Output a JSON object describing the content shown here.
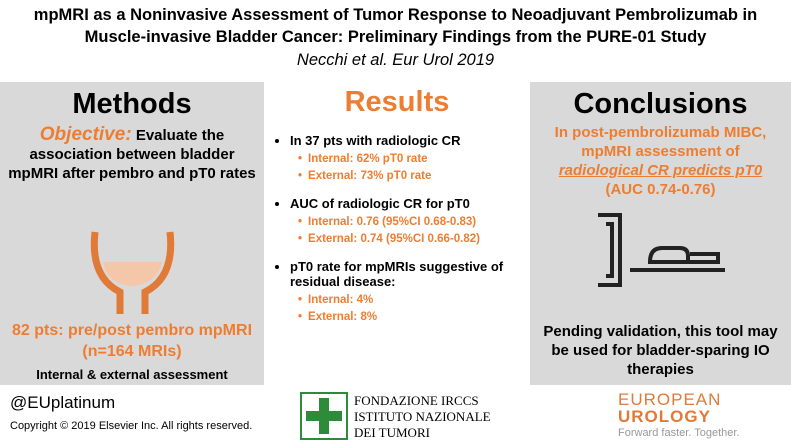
{
  "header": {
    "title_lines": [
      "mpMRI as a Noninvasive Assessment of Tumor Response to Neoadjuvant Pembrolizumab in",
      "Muscle-invasive Bladder Cancer: Preliminary Findings from the PURE-01 Study"
    ],
    "citation": "Necchi et al. Eur Urol 2019"
  },
  "methods": {
    "heading": "Methods",
    "objective_label": "Objective:",
    "objective_text": "Evaluate the association between bladder mpMRI after pembro and pT0 rates",
    "patients": "82 pts: pre/post pembro mpMRI (n=164 MRIs)",
    "assessment": "Internal & external assessment"
  },
  "results": {
    "heading": "Results",
    "items": [
      {
        "text": "In 37 pts with radiologic CR",
        "subitems": [
          "Internal: 62% pT0 rate",
          "External: 73% pT0 rate"
        ]
      },
      {
        "text": "AUC of radiologic CR for pT0",
        "subitems": [
          "Internal: 0.76 (95%CI 0.68-0.83)",
          "External: 0.74 (95%CI 0.66-0.82)"
        ]
      },
      {
        "text": "pT0 rate for mpMRIs suggestive of residual disease:",
        "subitems": [
          "Internal: 4%",
          "External: 8%"
        ]
      }
    ]
  },
  "conclusions": {
    "heading": "Conclusions",
    "statement": "In post-pembrolizumab MIBC, mpMRI assessment of",
    "emphasis": "radiological CR predicts pT0",
    "auc": "(AUC 0.74-0.76)",
    "closing": "Pending validation, this tool may be used for bladder-sparing IO therapies"
  },
  "footer": {
    "handle": "@EUplatinum",
    "copyright": "Copyright © 2019 Elsevier Inc. All rights reserved.",
    "institute_lines": [
      "FONDAZIONE IRCCS",
      "ISTITUTO NAZIONALE",
      "DEI TUMORI"
    ],
    "journal_lines": [
      "EUROPEAN",
      "UROLOGY"
    ],
    "tagline": "Forward faster. Together."
  }
}
